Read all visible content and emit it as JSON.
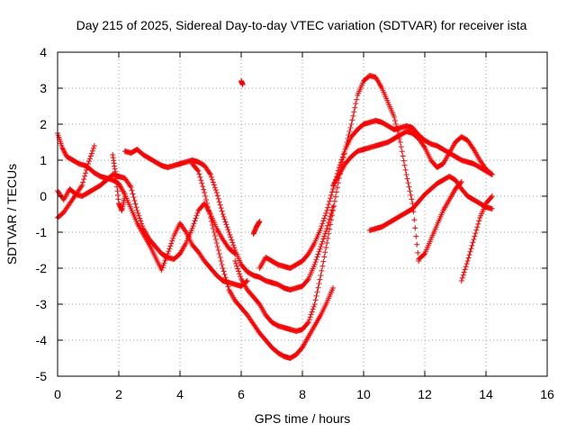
{
  "chart_data": {
    "type": "scatter",
    "title": "Day 215 of 2025, Sidereal Day-to-day VTEC variation (SDTVAR) for receiver ista",
    "xlabel": "GPS time / hours",
    "ylabel": "SDTVAR / TECUs",
    "xlim": [
      0,
      16
    ],
    "ylim": [
      -5,
      4
    ],
    "xticks": [
      0,
      2,
      4,
      6,
      8,
      10,
      12,
      14,
      16
    ],
    "yticks": [
      -5,
      -4,
      -3,
      -2,
      -1,
      0,
      1,
      2,
      3,
      4
    ],
    "xtick_labels": [
      "0",
      "2",
      "4",
      "6",
      "8",
      "10",
      "12",
      "14",
      "16"
    ],
    "ytick_labels": [
      "-5",
      "-4",
      "-3",
      "-2",
      "-1",
      "0",
      "1",
      "2",
      "3",
      "4"
    ],
    "grid": true,
    "marker": "+",
    "marker_color": "#ff0000",
    "series": [
      {
        "name": "",
        "x": [
          0.0,
          0.15,
          0.3,
          0.5,
          0.7,
          0.9,
          1.0,
          1.2,
          1.4,
          1.6,
          1.8,
          2.0,
          2.2,
          2.4,
          2.6,
          2.8,
          3.0,
          3.2,
          3.4,
          3.6,
          3.8,
          4.0,
          4.2,
          4.4,
          4.6,
          4.8,
          5.0,
          5.2,
          5.4,
          5.6,
          5.8,
          6.0,
          6.2
        ],
        "y": [
          1.75,
          1.35,
          1.1,
          1.0,
          0.9,
          0.85,
          0.8,
          0.65,
          0.55,
          0.5,
          0.45,
          0.35,
          0.05,
          -0.35,
          -0.75,
          -1.05,
          -1.35,
          -1.7,
          -2.05,
          -1.6,
          -1.1,
          -0.75,
          -1.0,
          -1.35,
          -1.55,
          -1.8,
          -2.0,
          -2.2,
          -2.35,
          -2.4,
          -2.45,
          -2.5,
          -2.35
        ]
      },
      {
        "name": "",
        "x": [
          0.0,
          0.2,
          0.4,
          0.6,
          0.8,
          1.0,
          1.2,
          1.4,
          1.6,
          1.8,
          2.0,
          2.2,
          2.4,
          2.6,
          2.8,
          3.0,
          3.2,
          3.4,
          3.6,
          3.8,
          4.0,
          4.2,
          4.4,
          4.6,
          4.8,
          5.0,
          5.2,
          5.4,
          5.6,
          5.8
        ],
        "y": [
          -0.6,
          -0.45,
          -0.2,
          0.05,
          0.0,
          0.1,
          0.2,
          0.3,
          0.45,
          0.6,
          0.55,
          0.5,
          0.25,
          -0.4,
          -0.9,
          -1.2,
          -1.4,
          -1.6,
          -1.7,
          -1.75,
          -1.6,
          -1.3,
          -0.9,
          -0.4,
          -0.2,
          -0.5,
          -0.9,
          -1.2,
          -1.45,
          -1.6
        ]
      },
      {
        "name": "",
        "x": [
          2.2,
          2.4,
          2.6,
          2.8,
          3.0,
          3.2,
          3.4,
          3.6,
          3.8,
          4.0,
          4.2,
          4.4,
          4.6,
          4.8,
          5.0,
          5.2,
          5.4,
          5.6,
          5.8,
          6.0,
          6.2,
          6.4,
          6.6,
          6.8,
          7.0,
          7.2,
          7.4,
          7.6,
          7.8,
          8.0,
          8.2,
          8.4,
          8.6,
          8.8,
          9.0
        ],
        "y": [
          1.25,
          1.2,
          1.3,
          1.15,
          1.05,
          0.95,
          0.85,
          0.8,
          0.85,
          0.9,
          0.95,
          1.0,
          0.95,
          0.85,
          0.6,
          0.1,
          -0.5,
          -1.0,
          -1.5,
          -1.9,
          -2.1,
          -2.2,
          -2.25,
          -2.35,
          -2.4,
          -2.45,
          -2.55,
          -2.6,
          -2.55,
          -2.5,
          -2.3,
          -1.9,
          -1.4,
          -0.9,
          -0.3
        ]
      },
      {
        "name": "",
        "x": [
          4.4,
          4.6,
          4.8,
          5.0,
          5.2,
          5.4,
          5.6,
          5.8,
          6.0,
          6.2,
          6.4,
          6.6,
          6.8,
          7.0,
          7.2,
          7.4,
          7.6,
          7.8,
          8.0,
          8.2,
          8.4,
          8.6,
          8.8,
          9.0
        ],
        "y": [
          0.9,
          0.7,
          0.1,
          -0.6,
          -1.3,
          -2.0,
          -2.6,
          -2.9,
          -3.1,
          -3.3,
          -3.55,
          -3.8,
          -4.0,
          -4.2,
          -4.35,
          -4.45,
          -4.5,
          -4.4,
          -4.2,
          -3.9,
          -3.6,
          -3.3,
          -2.95,
          -2.55
        ]
      },
      {
        "name": "",
        "x": [
          5.8,
          6.0,
          6.2,
          6.4,
          6.6,
          6.8,
          7.0,
          7.2,
          7.4,
          7.6,
          7.8,
          8.0,
          8.2,
          8.4,
          8.6,
          8.8,
          9.0,
          9.2,
          9.4,
          9.6,
          9.8,
          10.0,
          10.2,
          10.4,
          10.6,
          10.8,
          11.0,
          11.2,
          11.4,
          11.6,
          11.8
        ],
        "y": [
          -1.8,
          -2.3,
          -2.6,
          -2.8,
          -3.0,
          -3.3,
          -3.5,
          -3.6,
          -3.65,
          -3.7,
          -3.75,
          -3.7,
          -3.5,
          -3.0,
          -2.2,
          -1.3,
          -0.4,
          0.5,
          1.3,
          2.0,
          2.8,
          3.2,
          3.35,
          3.3,
          3.0,
          2.6,
          2.2,
          1.5,
          0.6,
          -0.2,
          -1.8
        ]
      },
      {
        "name": "",
        "x": [
          6.6,
          6.8,
          7.0,
          7.2,
          7.4,
          7.6,
          7.8,
          8.0,
          8.2,
          8.4,
          8.6,
          8.8,
          9.0,
          9.2,
          9.4,
          9.6,
          9.8,
          10.0,
          10.2,
          10.4,
          10.6,
          10.8,
          11.0,
          11.2,
          11.4,
          11.6,
          11.8,
          12.0,
          12.2,
          12.4,
          12.6,
          12.8,
          13.0,
          13.2,
          13.4,
          13.6,
          13.8,
          14.0,
          14.2
        ],
        "y": [
          -2.0,
          -1.7,
          -1.8,
          -1.9,
          -1.95,
          -2.0,
          -1.9,
          -1.8,
          -1.6,
          -1.3,
          -0.9,
          -0.4,
          0.2,
          0.8,
          1.3,
          1.65,
          1.85,
          2.0,
          2.05,
          2.1,
          2.05,
          1.95,
          1.85,
          1.9,
          1.95,
          1.9,
          1.7,
          1.55,
          1.45,
          1.4,
          1.3,
          1.2,
          1.1,
          1.0,
          0.95,
          0.9,
          0.8,
          0.7,
          0.6
        ]
      },
      {
        "name": "",
        "x": [
          9.0,
          9.2,
          9.4,
          9.6,
          9.8,
          10.0,
          10.2,
          10.4,
          10.6,
          10.8,
          11.0,
          11.2,
          11.4,
          11.6,
          11.8,
          12.0,
          12.2,
          12.4,
          12.6,
          12.8,
          13.0,
          13.2,
          13.4,
          13.6,
          13.8,
          14.0,
          14.2
        ],
        "y": [
          0.3,
          0.6,
          0.9,
          1.1,
          1.25,
          1.3,
          1.35,
          1.4,
          1.45,
          1.5,
          1.6,
          1.7,
          1.8,
          1.75,
          1.6,
          1.35,
          1.0,
          0.8,
          0.9,
          1.2,
          1.5,
          1.65,
          1.55,
          1.3,
          1.0,
          0.75,
          0.6
        ]
      },
      {
        "name": "",
        "x": [
          10.2,
          10.4,
          10.6,
          10.8,
          11.0,
          11.2,
          11.4,
          11.6,
          11.8,
          12.0,
          12.2,
          12.4,
          12.6,
          12.8,
          13.0,
          13.2,
          13.4,
          13.6,
          13.8,
          14.0,
          14.2
        ],
        "y": [
          -0.95,
          -0.9,
          -0.85,
          -0.75,
          -0.65,
          -0.55,
          -0.45,
          -0.35,
          -0.15,
          0.05,
          0.2,
          0.35,
          0.45,
          0.55,
          0.45,
          0.2,
          0.0,
          -0.1,
          -0.2,
          -0.3,
          -0.35
        ]
      },
      {
        "name": "",
        "x": [
          11.8,
          12.0,
          12.2,
          12.4,
          12.6,
          12.8,
          13.0,
          13.2
        ],
        "y": [
          -1.75,
          -1.6,
          -1.2,
          -0.8,
          -0.4,
          -0.1,
          0.2,
          0.4
        ]
      },
      {
        "name": "",
        "x": [
          13.2,
          13.4,
          13.6,
          13.8,
          14.0,
          14.2
        ],
        "y": [
          -2.35,
          -1.8,
          -1.2,
          -0.6,
          -0.2,
          0.0
        ]
      },
      {
        "name": "",
        "x": [
          0.0,
          0.2,
          0.4,
          0.6,
          0.8,
          1.0,
          1.2
        ],
        "y": [
          0.15,
          -0.1,
          0.2,
          0.05,
          0.3,
          0.9,
          1.4
        ]
      },
      {
        "name": "",
        "x": [
          1.8,
          1.9,
          2.0,
          2.1,
          2.2
        ],
        "y": [
          1.15,
          0.6,
          -0.2,
          -0.4,
          0.0
        ]
      },
      {
        "name": "",
        "x": [
          6.0,
          6.05
        ],
        "y": [
          3.2,
          3.1
        ]
      },
      {
        "name": "",
        "x": [
          6.4,
          6.5,
          6.6
        ],
        "y": [
          -1.05,
          -0.85,
          -0.7
        ]
      }
    ]
  }
}
